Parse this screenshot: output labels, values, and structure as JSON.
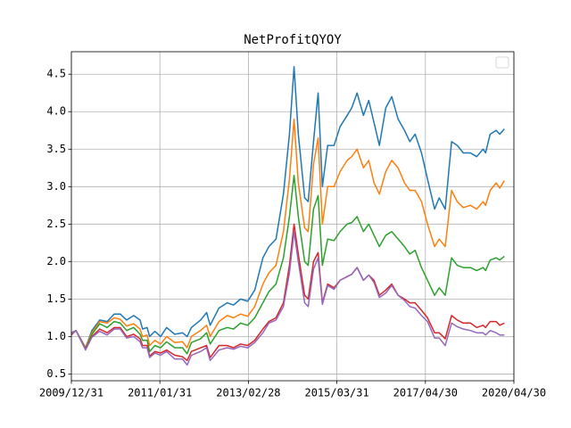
{
  "chart_data": {
    "type": "line",
    "title": "NetProfitQYOY",
    "x": [
      0,
      1.3,
      4.0,
      5.8,
      8.0,
      10.1,
      12.1,
      13.8,
      15.6,
      17.6,
      19.4,
      20.1,
      21.4,
      22.1,
      23.6,
      25.2,
      26.9,
      29.2,
      31.4,
      32.7,
      33.9,
      36.5,
      38.2,
      39.2,
      41.7,
      44.0,
      45.8,
      47.8,
      49.8,
      51.8,
      54.1,
      55.8,
      57.8,
      59.9,
      61.6,
      62.9,
      64.1,
      65.9,
      66.9,
      68.4,
      69.7,
      70.9,
      72.4,
      74.2,
      75.9,
      77.9,
      79.2,
      80.7,
      82.5,
      84.0,
      85.5,
      87.0,
      88.8,
      90.5,
      92.3,
      94.1,
      95.6,
      97.1,
      98.9,
      100.6,
      102.6,
      103.9,
      105.6,
      107.4,
      109.0,
      110.7,
      112.7,
      114.5,
      116.3,
      117.0,
      118.3,
      120.0,
      121.0,
      122.3
    ],
    "series": [
      {
        "color": "#1f77b4",
        "values": [
          1.05,
          1.08,
          0.85,
          1.08,
          1.22,
          1.2,
          1.3,
          1.3,
          1.22,
          1.28,
          1.22,
          1.1,
          1.12,
          1.0,
          1.07,
          1.0,
          1.12,
          1.03,
          1.05,
          1.0,
          1.12,
          1.22,
          1.32,
          1.15,
          1.38,
          1.45,
          1.42,
          1.5,
          1.47,
          1.62,
          2.05,
          2.2,
          2.3,
          2.9,
          3.7,
          4.6,
          3.7,
          2.85,
          2.8,
          3.6,
          4.25,
          3.0,
          3.55,
          3.55,
          3.8,
          3.95,
          4.05,
          4.25,
          3.95,
          4.15,
          3.85,
          3.55,
          4.05,
          4.2,
          3.9,
          3.75,
          3.6,
          3.7,
          3.45,
          3.1,
          2.7,
          2.85,
          2.7,
          3.6,
          3.55,
          3.45,
          3.45,
          3.4,
          3.5,
          3.45,
          3.7,
          3.75,
          3.7,
          3.77
        ]
      },
      {
        "color": "#ff7f0e",
        "values": [
          1.04,
          1.08,
          0.85,
          1.05,
          1.2,
          1.18,
          1.25,
          1.23,
          1.14,
          1.17,
          1.1,
          1.0,
          1.02,
          0.88,
          0.95,
          0.9,
          1.0,
          0.92,
          0.93,
          0.85,
          1.0,
          1.08,
          1.15,
          1.0,
          1.2,
          1.28,
          1.25,
          1.3,
          1.27,
          1.4,
          1.7,
          1.85,
          1.95,
          2.4,
          3.1,
          3.9,
          3.05,
          2.45,
          2.4,
          3.3,
          3.65,
          2.5,
          3.0,
          3.0,
          3.2,
          3.35,
          3.4,
          3.5,
          3.25,
          3.35,
          3.05,
          2.9,
          3.2,
          3.35,
          3.25,
          3.05,
          2.95,
          2.95,
          2.8,
          2.5,
          2.2,
          2.3,
          2.2,
          2.95,
          2.8,
          2.72,
          2.75,
          2.7,
          2.8,
          2.75,
          2.95,
          3.05,
          2.98,
          3.08
        ]
      },
      {
        "color": "#2ca02c",
        "values": [
          1.03,
          1.08,
          0.84,
          1.03,
          1.17,
          1.12,
          1.2,
          1.18,
          1.08,
          1.12,
          1.03,
          0.95,
          0.95,
          0.8,
          0.88,
          0.85,
          0.93,
          0.85,
          0.85,
          0.77,
          0.92,
          0.97,
          1.05,
          0.9,
          1.08,
          1.12,
          1.1,
          1.18,
          1.15,
          1.25,
          1.45,
          1.6,
          1.7,
          2.05,
          2.6,
          3.15,
          2.6,
          2.0,
          1.95,
          2.7,
          2.88,
          1.95,
          2.3,
          2.28,
          2.4,
          2.5,
          2.52,
          2.6,
          2.4,
          2.5,
          2.35,
          2.2,
          2.35,
          2.4,
          2.3,
          2.2,
          2.1,
          2.15,
          1.92,
          1.75,
          1.55,
          1.65,
          1.55,
          2.05,
          1.95,
          1.92,
          1.92,
          1.88,
          1.92,
          1.88,
          2.02,
          2.05,
          2.02,
          2.07
        ]
      },
      {
        "color": "#d62728",
        "values": [
          1.02,
          1.08,
          0.83,
          1.0,
          1.1,
          1.05,
          1.12,
          1.12,
          1.0,
          1.03,
          0.97,
          0.88,
          0.88,
          0.74,
          0.8,
          0.78,
          0.82,
          0.75,
          0.73,
          0.68,
          0.8,
          0.85,
          0.88,
          0.72,
          0.88,
          0.88,
          0.85,
          0.9,
          0.88,
          0.95,
          1.1,
          1.2,
          1.25,
          1.45,
          1.95,
          2.5,
          2.1,
          1.55,
          1.5,
          2.0,
          2.12,
          1.45,
          1.7,
          1.65,
          1.75,
          1.8,
          1.83,
          1.92,
          1.75,
          1.82,
          1.75,
          1.55,
          1.62,
          1.7,
          1.55,
          1.5,
          1.45,
          1.45,
          1.35,
          1.25,
          1.05,
          1.05,
          0.97,
          1.28,
          1.22,
          1.18,
          1.18,
          1.12,
          1.15,
          1.12,
          1.2,
          1.2,
          1.15,
          1.18
        ]
      },
      {
        "color": "#9467bd",
        "values": [
          1.03,
          1.08,
          0.82,
          0.99,
          1.07,
          1.02,
          1.1,
          1.1,
          0.98,
          1.0,
          0.93,
          0.85,
          0.85,
          0.72,
          0.78,
          0.75,
          0.8,
          0.7,
          0.7,
          0.62,
          0.75,
          0.8,
          0.85,
          0.68,
          0.82,
          0.85,
          0.83,
          0.87,
          0.85,
          0.92,
          1.05,
          1.18,
          1.22,
          1.4,
          1.85,
          2.4,
          2.0,
          1.45,
          1.4,
          1.9,
          2.05,
          1.43,
          1.68,
          1.63,
          1.75,
          1.8,
          1.83,
          1.92,
          1.75,
          1.82,
          1.72,
          1.52,
          1.58,
          1.68,
          1.55,
          1.48,
          1.4,
          1.38,
          1.28,
          1.2,
          0.98,
          0.98,
          0.88,
          1.18,
          1.13,
          1.1,
          1.08,
          1.05,
          1.05,
          1.02,
          1.08,
          1.05,
          1.02,
          1.02
        ]
      }
    ],
    "xlim": [
      0,
      125
    ],
    "xticks": [
      {
        "value": 0,
        "label": "2009/12/31"
      },
      {
        "value": 25,
        "label": "2011/01/31"
      },
      {
        "value": 50,
        "label": "2013/02/28"
      },
      {
        "value": 75,
        "label": "2015/03/31"
      },
      {
        "value": 100,
        "label": "2017/04/30"
      },
      {
        "value": 125,
        "label": "2020/04/30"
      }
    ],
    "ylim": [
      0.41,
      4.8
    ],
    "yticks": [
      0.5,
      {
        "value": 1,
        "label": "1.0"
      },
      1.5,
      {
        "value": 2,
        "label": "2.0"
      },
      2.5,
      {
        "value": 3,
        "label": "3.0"
      },
      3.5,
      {
        "value": 4,
        "label": "4.0"
      },
      4.5
    ],
    "grid": true,
    "legend": "upper right"
  }
}
